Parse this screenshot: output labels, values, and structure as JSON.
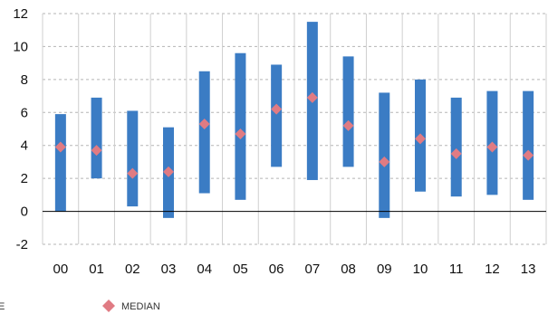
{
  "chart_data": {
    "type": "range-bar",
    "categories": [
      "00",
      "01",
      "02",
      "03",
      "04",
      "05",
      "06",
      "07",
      "08",
      "09",
      "10",
      "11",
      "12",
      "13"
    ],
    "series": [
      {
        "name": "",
        "low": [
          0.0,
          2.0,
          0.3,
          -0.4,
          1.1,
          0.7,
          2.7,
          1.9,
          2.7,
          -0.4,
          1.2,
          0.9,
          1.0,
          0.7
        ],
        "high": [
          5.9,
          6.9,
          6.1,
          5.1,
          8.5,
          9.6,
          8.9,
          11.5,
          9.4,
          7.2,
          8.0,
          6.9,
          7.3,
          7.3
        ]
      },
      {
        "name": "MEDIAN",
        "values": [
          3.9,
          3.7,
          2.3,
          2.4,
          5.3,
          4.7,
          6.2,
          6.9,
          5.2,
          3.0,
          4.4,
          3.5,
          3.9,
          3.4
        ]
      }
    ],
    "yticks": [
      -2,
      0,
      2,
      4,
      6,
      8,
      10,
      12
    ],
    "ylim": [
      -2,
      12
    ],
    "grid": "dashed-horizontal, solid-vertical",
    "legend": [
      {
        "label": "E",
        "position": "bottom-left"
      },
      {
        "label": "MEDIAN",
        "position": "bottom-center"
      }
    ],
    "colors": {
      "bar": "#3b7cc4",
      "median": "#e07b83",
      "grid": "#b5b5b5",
      "zero": "#000000"
    }
  }
}
